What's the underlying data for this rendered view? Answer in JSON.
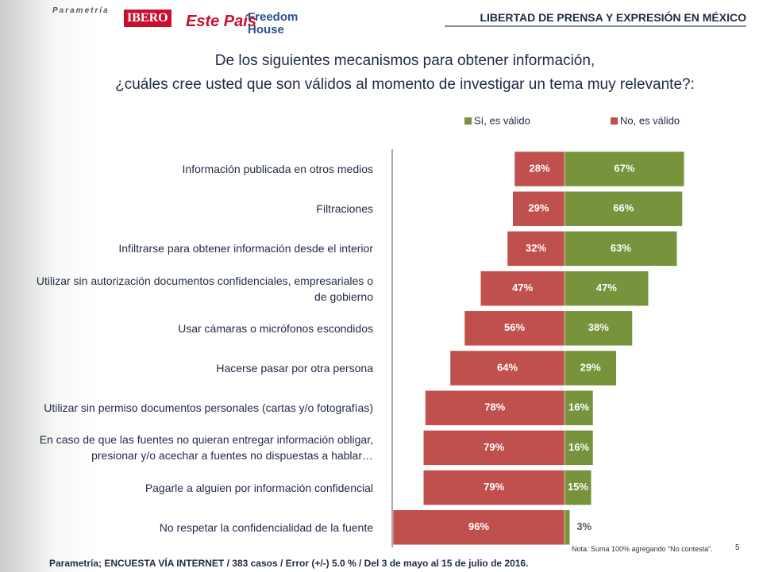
{
  "header": {
    "logos": [
      "Parametría",
      "IBERO",
      "Este País",
      "Freedom House"
    ],
    "section": "LIBERTAD DE PRENSA Y EXPRESIÓN EN MÉXICO"
  },
  "chart_data": {
    "type": "diverging-bar",
    "title": [
      "De los siguientes mecanismos para obtener información,",
      "¿cuáles cree usted que son válidos al momento de investigar un tema muy relevante?:"
    ],
    "categories": [
      "Información publicada en otros medios",
      "Filtraciones",
      "Infiltrarse para obtener información desde el interior",
      "Utilizar sin autorización documentos confidenciales, empresariales o de gobierno",
      "Usar cámaras o micrófonos escondidos",
      "Hacerse pasar por otra persona",
      "Utilizar sin permiso documentos personales (cartas y/o fotografías)",
      "En caso de que las fuentes no quieran entregar información obligar, presionar y/o acechar a fuentes no dispuestas a hablar…",
      "Pagarle a alguien por información confidencial",
      "No respetar la confidencialidad de la fuente"
    ],
    "series": [
      {
        "name": "Sí, es válido",
        "color": "#77933c",
        "side": "right",
        "values": [
          67,
          66,
          63,
          47,
          38,
          29,
          16,
          16,
          15,
          3
        ],
        "value_labels": [
          "67%",
          "66%",
          "63%",
          "47%",
          "38%",
          "29%",
          "16%",
          "16%",
          "15%",
          "3%"
        ]
      },
      {
        "name": "No, es válido",
        "color": "#c0504d",
        "side": "left",
        "values": [
          28,
          29,
          32,
          47,
          56,
          64,
          78,
          79,
          79,
          96
        ],
        "value_labels": [
          "28%",
          "29%",
          "32%",
          "47%",
          "56%",
          "64%",
          "78%",
          "79%",
          "79%",
          "96%"
        ]
      }
    ]
  },
  "footer": {
    "source": "Parametría; ENCUESTA VÍA INTERNET /  383 casos / Error (+/-) 5.0 % / Del 3 de mayo al 15 de julio de 2016.",
    "note": "Nota: Suma 100%  agregando “No contesta”.",
    "page": "5"
  }
}
